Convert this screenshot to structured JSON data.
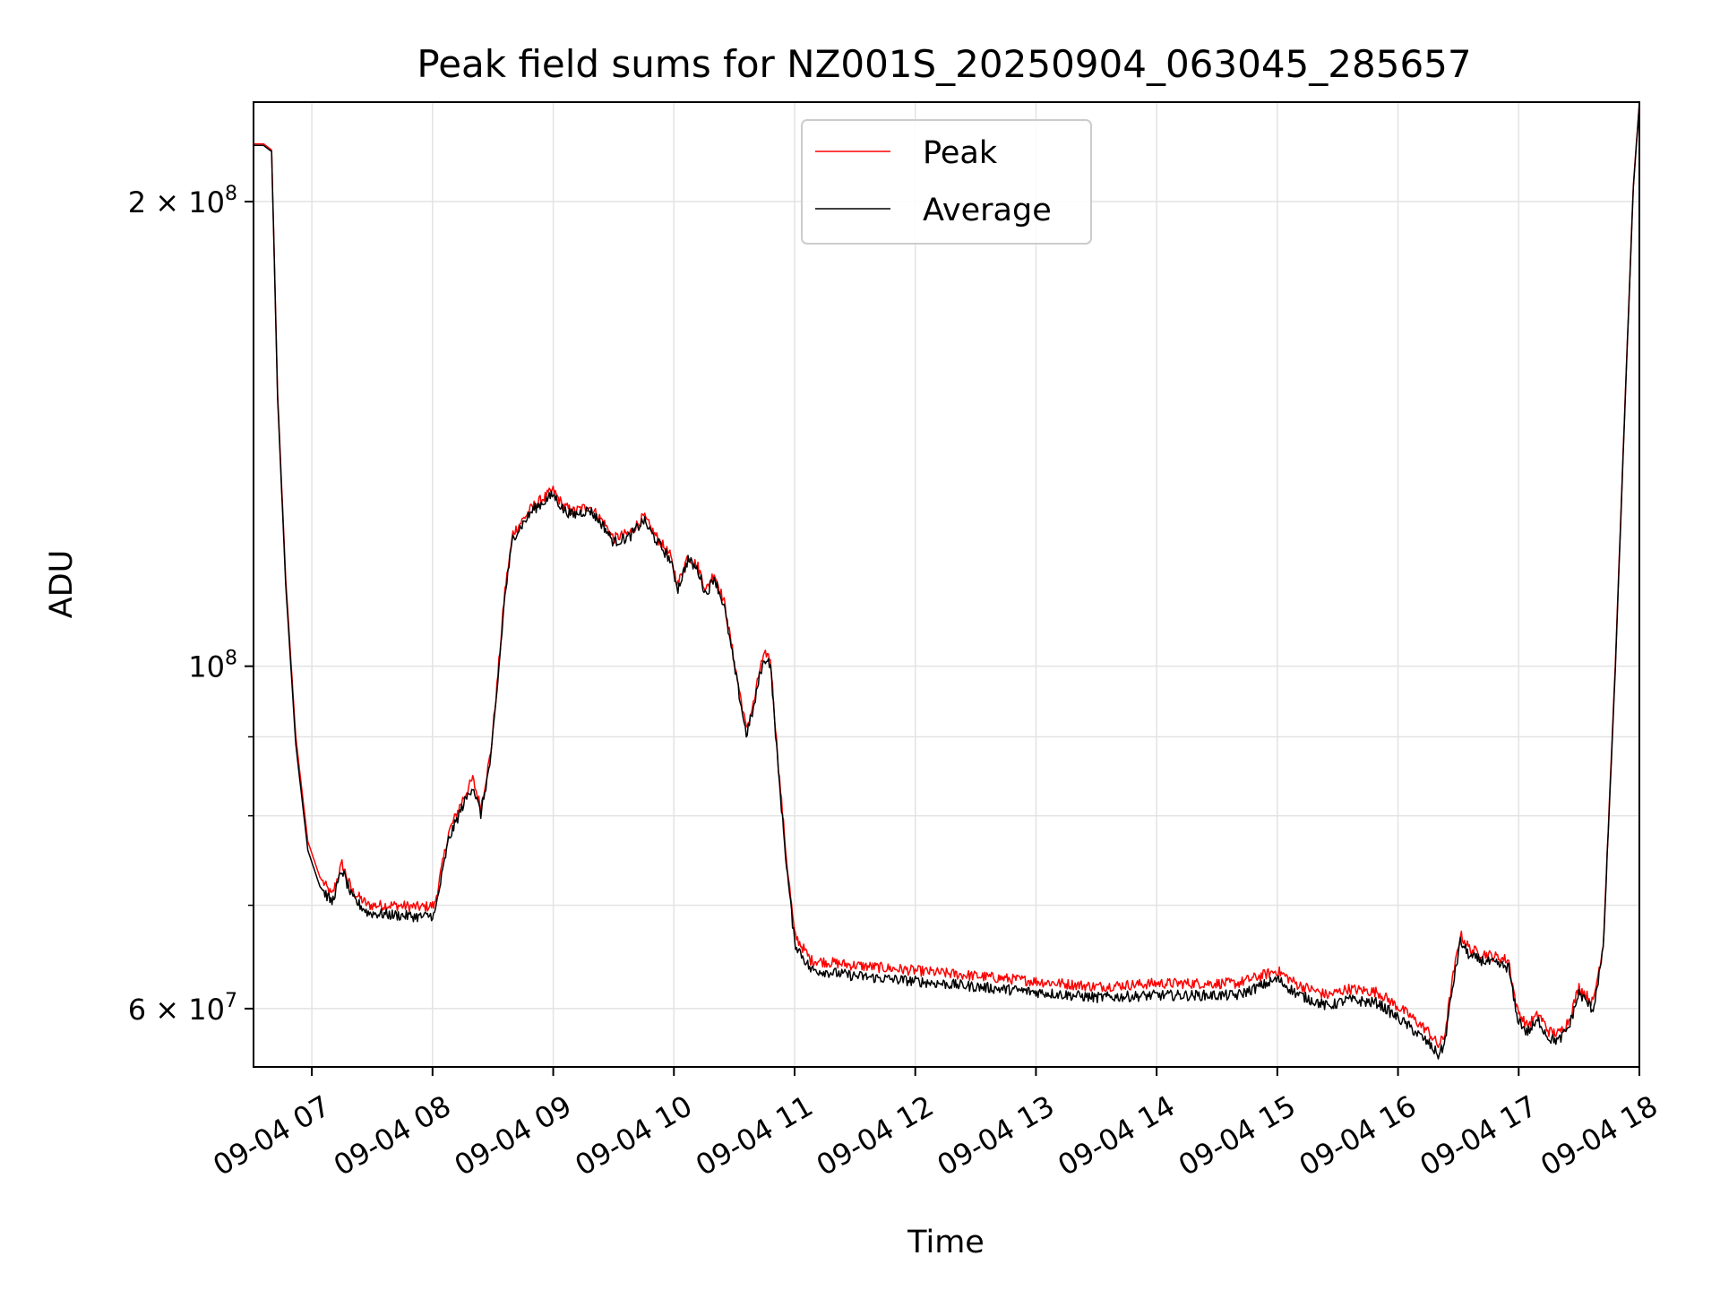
{
  "chart_data": {
    "type": "line",
    "title": "Peak field sums for NZ001S_20250904_063045_285657",
    "xlabel": "Time",
    "ylabel": "ADU",
    "yscale": "log",
    "grid": true,
    "legend_placement": "upper-center",
    "x_range": [
      "2025-09-04 06:31",
      "2025-09-04 18:00"
    ],
    "ylim": [
      55000000,
      232000000
    ],
    "x_ticks": [
      "09-04 07",
      "09-04 08",
      "09-04 09",
      "09-04 10",
      "09-04 11",
      "09-04 12",
      "09-04 13",
      "09-04 14",
      "09-04 15",
      "09-04 16",
      "09-04 17",
      "09-04 18"
    ],
    "x_tick_times": [
      "2025-09-04 07:00",
      "2025-09-04 08:00",
      "2025-09-04 09:00",
      "2025-09-04 10:00",
      "2025-09-04 11:00",
      "2025-09-04 12:00",
      "2025-09-04 13:00",
      "2025-09-04 14:00",
      "2025-09-04 15:00",
      "2025-09-04 16:00",
      "2025-09-04 17:00",
      "2025-09-04 18:00"
    ],
    "y_ticks": [
      {
        "value": 200000000,
        "label_base": "2 × 10",
        "label_exp": "8"
      },
      {
        "value": 100000000,
        "label_base": "10",
        "label_exp": "8"
      },
      {
        "value": 60000000,
        "label_base": "6 × 10",
        "label_exp": "7"
      }
    ],
    "y_minor_ticks": [
      70000000,
      80000000,
      90000000
    ],
    "series": [
      {
        "name": "Peak",
        "color": "#ff0000",
        "noise": 0.008,
        "points": [
          [
            "2025-09-04 06:31",
            218000000
          ],
          [
            "2025-09-04 06:36",
            218000000
          ],
          [
            "2025-09-04 06:40",
            216000000
          ],
          [
            "2025-09-04 06:43",
            150000000
          ],
          [
            "2025-09-04 06:47",
            114000000
          ],
          [
            "2025-09-04 06:52",
            90000000
          ],
          [
            "2025-09-04 06:58",
            77000000
          ],
          [
            "2025-09-04 07:04",
            73000000
          ],
          [
            "2025-09-04 07:10",
            71000000
          ],
          [
            "2025-09-04 07:15",
            74500000
          ],
          [
            "2025-09-04 07:20",
            71500000
          ],
          [
            "2025-09-04 07:28",
            70000000
          ],
          [
            "2025-09-04 07:40",
            70000000
          ],
          [
            "2025-09-04 07:55",
            69800000
          ],
          [
            "2025-09-04 08:01",
            70000000
          ],
          [
            "2025-09-04 08:08",
            78000000
          ],
          [
            "2025-09-04 08:15",
            82000000
          ],
          [
            "2025-09-04 08:20",
            84500000
          ],
          [
            "2025-09-04 08:24",
            81000000
          ],
          [
            "2025-09-04 08:29",
            88000000
          ],
          [
            "2025-09-04 08:32",
            97000000
          ],
          [
            "2025-09-04 08:36",
            112000000
          ],
          [
            "2025-09-04 08:40",
            122000000
          ],
          [
            "2025-09-04 08:50",
            127000000
          ],
          [
            "2025-09-04 09:00",
            130000000
          ],
          [
            "2025-09-04 09:05",
            127000000
          ],
          [
            "2025-09-04 09:10",
            126000000
          ],
          [
            "2025-09-04 09:18",
            127000000
          ],
          [
            "2025-09-04 09:25",
            124000000
          ],
          [
            "2025-09-04 09:30",
            121000000
          ],
          [
            "2025-09-04 09:38",
            122000000
          ],
          [
            "2025-09-04 09:45",
            125000000
          ],
          [
            "2025-09-04 09:50",
            122000000
          ],
          [
            "2025-09-04 09:58",
            118000000
          ],
          [
            "2025-09-04 10:02",
            113000000
          ],
          [
            "2025-09-04 10:07",
            118000000
          ],
          [
            "2025-09-04 10:12",
            116000000
          ],
          [
            "2025-09-04 10:16",
            112000000
          ],
          [
            "2025-09-04 10:20",
            115000000
          ],
          [
            "2025-09-04 10:25",
            110000000
          ],
          [
            "2025-09-04 10:31",
            99000000
          ],
          [
            "2025-09-04 10:36",
            91000000
          ],
          [
            "2025-09-04 10:40",
            95000000
          ],
          [
            "2025-09-04 10:43",
            100000000
          ],
          [
            "2025-09-04 10:46",
            102000000
          ],
          [
            "2025-09-04 10:48",
            101000000
          ],
          [
            "2025-09-04 10:52",
            86000000
          ],
          [
            "2025-09-04 10:56",
            75000000
          ],
          [
            "2025-09-04 11:00",
            67000000
          ],
          [
            "2025-09-04 11:08",
            64500000
          ],
          [
            "2025-09-04 11:30",
            64000000
          ],
          [
            "2025-09-04 12:00",
            63500000
          ],
          [
            "2025-09-04 12:30",
            63000000
          ],
          [
            "2025-09-04 13:00",
            62500000
          ],
          [
            "2025-09-04 13:30",
            62000000
          ],
          [
            "2025-09-04 14:00",
            62300000
          ],
          [
            "2025-09-04 14:40",
            62300000
          ],
          [
            "2025-09-04 14:55",
            63200000
          ],
          [
            "2025-09-04 15:00",
            63500000
          ],
          [
            "2025-09-04 15:10",
            62200000
          ],
          [
            "2025-09-04 15:25",
            61200000
          ],
          [
            "2025-09-04 15:35",
            61800000
          ],
          [
            "2025-09-04 15:50",
            61500000
          ],
          [
            "2025-09-04 16:05",
            59500000
          ],
          [
            "2025-09-04 16:15",
            58000000
          ],
          [
            "2025-09-04 16:20",
            56800000
          ],
          [
            "2025-09-04 16:23",
            57500000
          ],
          [
            "2025-09-04 16:27",
            62500000
          ],
          [
            "2025-09-04 16:31",
            67000000
          ],
          [
            "2025-09-04 16:36",
            65500000
          ],
          [
            "2025-09-04 16:45",
            65000000
          ],
          [
            "2025-09-04 16:55",
            64500000
          ],
          [
            "2025-09-04 16:59",
            60000000
          ],
          [
            "2025-09-04 17:04",
            58500000
          ],
          [
            "2025-09-04 17:10",
            59500000
          ],
          [
            "2025-09-04 17:15",
            58000000
          ],
          [
            "2025-09-04 17:20",
            57800000
          ],
          [
            "2025-09-04 17:25",
            59000000
          ],
          [
            "2025-09-04 17:30",
            62000000
          ],
          [
            "2025-09-04 17:37",
            60500000
          ],
          [
            "2025-09-04 17:42",
            66000000
          ],
          [
            "2025-09-04 17:48",
            100000000
          ],
          [
            "2025-09-04 17:53",
            150000000
          ],
          [
            "2025-09-04 17:57",
            205000000
          ],
          [
            "2025-09-04 18:00",
            232000000
          ]
        ]
      },
      {
        "name": "Average",
        "color": "#000000",
        "noise": 0.008,
        "points": [
          [
            "2025-09-04 06:31",
            217500000
          ],
          [
            "2025-09-04 06:36",
            217500000
          ],
          [
            "2025-09-04 06:40",
            215500000
          ],
          [
            "2025-09-04 06:43",
            149000000
          ],
          [
            "2025-09-04 06:47",
            113000000
          ],
          [
            "2025-09-04 06:52",
            89000000
          ],
          [
            "2025-09-04 06:58",
            76000000
          ],
          [
            "2025-09-04 07:04",
            72000000
          ],
          [
            "2025-09-04 07:10",
            70300000
          ],
          [
            "2025-09-04 07:15",
            73800000
          ],
          [
            "2025-09-04 07:20",
            70800000
          ],
          [
            "2025-09-04 07:28",
            69200000
          ],
          [
            "2025-09-04 07:40",
            69000000
          ],
          [
            "2025-09-04 07:55",
            68800000
          ],
          [
            "2025-09-04 08:01",
            69000000
          ],
          [
            "2025-09-04 08:08",
            77200000
          ],
          [
            "2025-09-04 08:15",
            81200000
          ],
          [
            "2025-09-04 08:20",
            83700000
          ],
          [
            "2025-09-04 08:24",
            80200000
          ],
          [
            "2025-09-04 08:29",
            87200000
          ],
          [
            "2025-09-04 08:32",
            96200000
          ],
          [
            "2025-09-04 08:36",
            111200000
          ],
          [
            "2025-09-04 08:40",
            121200000
          ],
          [
            "2025-09-04 08:50",
            126300000
          ],
          [
            "2025-09-04 09:00",
            129200000
          ],
          [
            "2025-09-04 09:05",
            126300000
          ],
          [
            "2025-09-04 09:10",
            125300000
          ],
          [
            "2025-09-04 09:18",
            126300000
          ],
          [
            "2025-09-04 09:25",
            123300000
          ],
          [
            "2025-09-04 09:30",
            120300000
          ],
          [
            "2025-09-04 09:38",
            121300000
          ],
          [
            "2025-09-04 09:45",
            124300000
          ],
          [
            "2025-09-04 09:50",
            121300000
          ],
          [
            "2025-09-04 09:58",
            117300000
          ],
          [
            "2025-09-04 10:02",
            112300000
          ],
          [
            "2025-09-04 10:07",
            117300000
          ],
          [
            "2025-09-04 10:12",
            115300000
          ],
          [
            "2025-09-04 10:16",
            111300000
          ],
          [
            "2025-09-04 10:20",
            114300000
          ],
          [
            "2025-09-04 10:25",
            109300000
          ],
          [
            "2025-09-04 10:31",
            98300000
          ],
          [
            "2025-09-04 10:36",
            90300000
          ],
          [
            "2025-09-04 10:40",
            94300000
          ],
          [
            "2025-09-04 10:43",
            99300000
          ],
          [
            "2025-09-04 10:46",
            101300000
          ],
          [
            "2025-09-04 10:48",
            100300000
          ],
          [
            "2025-09-04 10:52",
            85300000
          ],
          [
            "2025-09-04 10:56",
            74300000
          ],
          [
            "2025-09-04 11:00",
            66200000
          ],
          [
            "2025-09-04 11:08",
            63600000
          ],
          [
            "2025-09-04 11:30",
            63000000
          ],
          [
            "2025-09-04 12:00",
            62500000
          ],
          [
            "2025-09-04 12:30",
            62000000
          ],
          [
            "2025-09-04 13:00",
            61500000
          ],
          [
            "2025-09-04 13:30",
            61000000
          ],
          [
            "2025-09-04 14:00",
            61200000
          ],
          [
            "2025-09-04 14:40",
            61200000
          ],
          [
            "2025-09-04 14:55",
            62300000
          ],
          [
            "2025-09-04 15:00",
            62700000
          ],
          [
            "2025-09-04 15:10",
            61300000
          ],
          [
            "2025-09-04 15:25",
            60200000
          ],
          [
            "2025-09-04 15:35",
            60800000
          ],
          [
            "2025-09-04 15:50",
            60500000
          ],
          [
            "2025-09-04 16:05",
            58500000
          ],
          [
            "2025-09-04 16:15",
            57000000
          ],
          [
            "2025-09-04 16:20",
            56000000
          ],
          [
            "2025-09-04 16:23",
            56800000
          ],
          [
            "2025-09-04 16:27",
            61800000
          ],
          [
            "2025-09-04 16:31",
            66300000
          ],
          [
            "2025-09-04 16:36",
            64800000
          ],
          [
            "2025-09-04 16:45",
            64300000
          ],
          [
            "2025-09-04 16:55",
            63800000
          ],
          [
            "2025-09-04 16:59",
            59300000
          ],
          [
            "2025-09-04 17:04",
            57900000
          ],
          [
            "2025-09-04 17:10",
            58900000
          ],
          [
            "2025-09-04 17:15",
            57400000
          ],
          [
            "2025-09-04 17:20",
            57200000
          ],
          [
            "2025-09-04 17:25",
            58400000
          ],
          [
            "2025-09-04 17:30",
            61400000
          ],
          [
            "2025-09-04 17:37",
            59900000
          ],
          [
            "2025-09-04 17:42",
            65400000
          ],
          [
            "2025-09-04 17:48",
            99300000
          ],
          [
            "2025-09-04 17:53",
            149300000
          ],
          [
            "2025-09-04 17:57",
            204300000
          ],
          [
            "2025-09-04 18:00",
            231500000
          ]
        ]
      }
    ]
  }
}
